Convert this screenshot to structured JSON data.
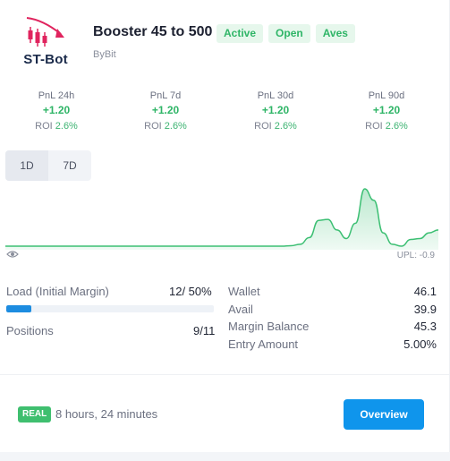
{
  "header": {
    "logo_text": "ST-Bot",
    "bot_name": "Booster 45 to 500",
    "badges": [
      "Active",
      "Open",
      "Aves"
    ],
    "exchange": "ByBit"
  },
  "stats": [
    {
      "label": "PnL 24h",
      "value": "+1.20",
      "roi_label": "ROI",
      "roi": "2.6%"
    },
    {
      "label": "PnL 7d",
      "value": "+1.20",
      "roi_label": "ROI",
      "roi": "2.6%"
    },
    {
      "label": "PnL 30d",
      "value": "+1.20",
      "roi_label": "ROI",
      "roi": "2.6%"
    },
    {
      "label": "PnL 90d",
      "value": "+1.20",
      "roi_label": "ROI",
      "roi": "2.6%"
    }
  ],
  "tabs": [
    {
      "label": "1D",
      "active": true
    },
    {
      "label": "7D",
      "active": false
    }
  ],
  "chart_data": {
    "type": "area",
    "y": [
      0,
      0,
      0,
      0,
      0,
      0,
      0,
      0,
      0,
      0,
      0,
      0,
      0,
      0,
      0,
      0,
      0,
      0,
      0,
      0,
      0,
      0,
      0,
      0,
      0,
      0,
      0,
      0,
      0,
      0,
      0,
      0.5,
      2,
      9,
      27,
      28,
      17,
      8,
      24,
      60,
      48,
      14,
      2,
      0,
      7,
      8,
      14,
      17
    ],
    "color": "#3cbf73"
  },
  "chart_footer": {
    "eye_icon": "eye-icon",
    "upl": "UPL: -0.9"
  },
  "load": {
    "label": "Load (Initial Margin)",
    "value": "12/ 50%",
    "progress": 0.12
  },
  "positions": {
    "label": "Positions",
    "value": "9/11"
  },
  "wallet_info": [
    {
      "key": "Wallet",
      "value": "46.1"
    },
    {
      "key": "Avail",
      "value": "39.9"
    },
    {
      "key": "Margin Balance",
      "value": "45.3"
    },
    {
      "key": "Entry Amount",
      "value": "5.00%"
    }
  ],
  "footer": {
    "real_badge": "REAL",
    "duration": "8 hours, 24 minutes",
    "overview_label": "Overview"
  },
  "colors": {
    "accent_green": "#2fb567",
    "button_blue": "#0f95ec",
    "progress_blue": "#1d8ce0",
    "logo_red": "#e0245e"
  }
}
